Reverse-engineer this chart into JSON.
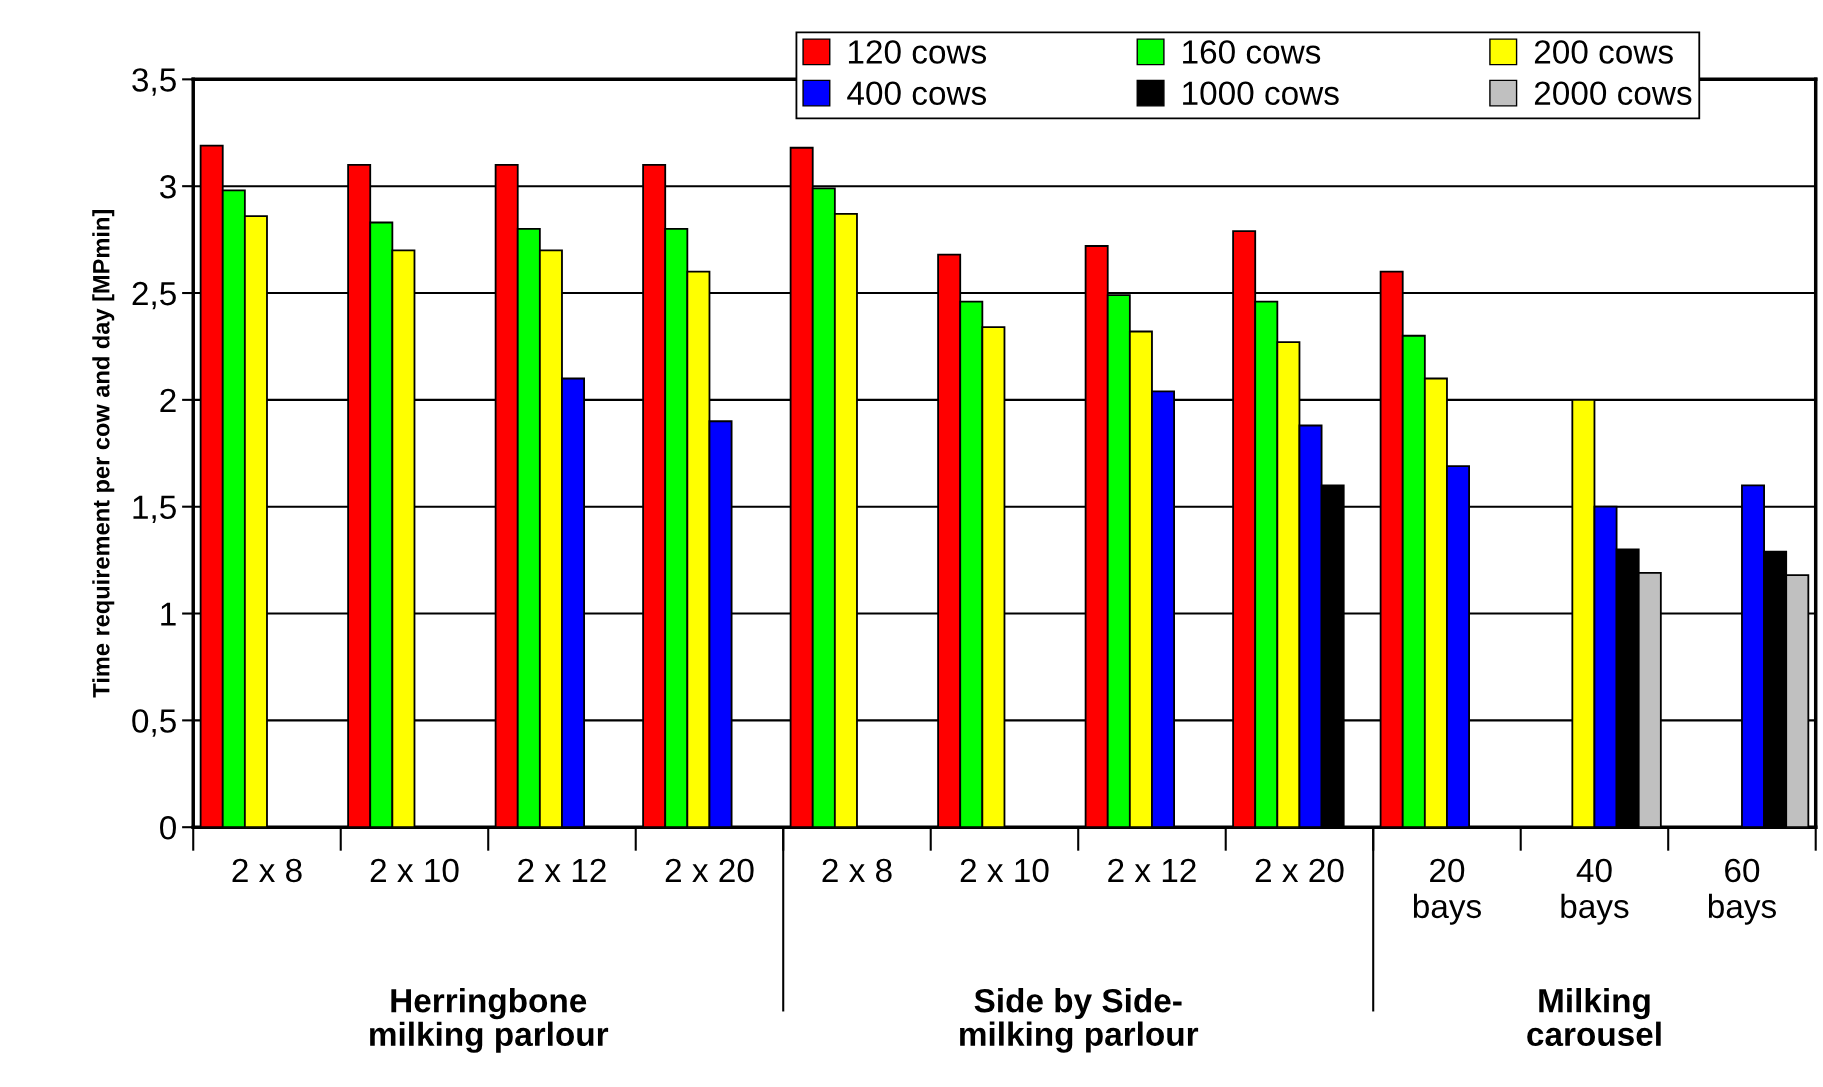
{
  "chart_data": {
    "type": "bar",
    "ylabel": "Time requirement per cow and day [MPmin]",
    "categories": [
      "2 x 8",
      "2 x 10",
      "2 x 12",
      "2 x 20",
      "2 x 8",
      "2 x 10",
      "2 x 12",
      "2 x 20",
      "20\nbays",
      "40\nbays",
      "60\nbays"
    ],
    "series": [
      {
        "name": "120 cows",
        "color": "#ff0000",
        "values": [
          3.19,
          3.1,
          3.1,
          3.1,
          3.18,
          2.68,
          2.72,
          2.79,
          2.6,
          null,
          null
        ]
      },
      {
        "name": "160 cows",
        "color": "#00ff00",
        "values": [
          2.98,
          2.83,
          2.8,
          2.8,
          2.99,
          2.46,
          2.49,
          2.46,
          2.3,
          null,
          null
        ]
      },
      {
        "name": "200 cows",
        "color": "#ffff00",
        "values": [
          2.86,
          2.7,
          2.7,
          2.6,
          2.87,
          2.34,
          2.32,
          2.27,
          2.1,
          2.0,
          null
        ]
      },
      {
        "name": "400 cows",
        "color": "#0000ff",
        "values": [
          null,
          null,
          2.1,
          1.9,
          null,
          null,
          2.04,
          1.88,
          1.69,
          1.5,
          1.6
        ]
      },
      {
        "name": "1000 cows",
        "color": "#000000",
        "values": [
          null,
          null,
          null,
          null,
          null,
          null,
          null,
          1.6,
          null,
          1.3,
          1.29
        ]
      },
      {
        "name": "2000 cows",
        "color": "#c0c0c0",
        "values": [
          null,
          null,
          null,
          null,
          null,
          null,
          null,
          null,
          null,
          1.19,
          1.18
        ]
      }
    ],
    "ylim": [
      0,
      3.5
    ],
    "yticks": [
      0,
      {
        "value": 0.5,
        "label": "0,5"
      },
      1,
      {
        "value": 1.5,
        "label": "1,5"
      },
      2,
      {
        "value": 2.5,
        "label": "2,5"
      },
      3,
      {
        "value": 3.5,
        "label": "3,5"
      }
    ],
    "grid": "y",
    "legend": "top",
    "annotations": [
      "Herringbone\nmilking parlour",
      "Side by Side-\nmilking parlour",
      "Milking\ncarousel"
    ]
  }
}
